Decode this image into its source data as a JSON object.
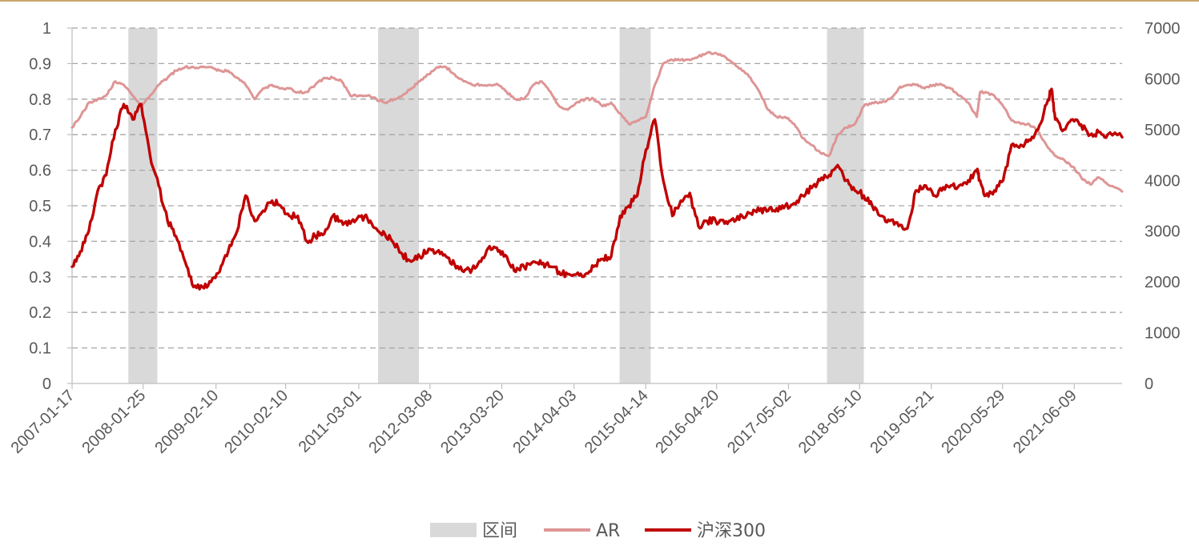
{
  "chart_data": {
    "type": "line",
    "title": "",
    "left_axis": {
      "ylim": [
        0,
        1
      ],
      "ticks": [
        "0",
        "0.1",
        "0.2",
        "0.3",
        "0.4",
        "0.5",
        "0.6",
        "0.7",
        "0.8",
        "0.9",
        "1"
      ]
    },
    "right_axis": {
      "ylim": [
        0,
        7000
      ],
      "ticks": [
        "0",
        "1000",
        "2000",
        "3000",
        "4000",
        "5000",
        "6000",
        "7000"
      ]
    },
    "x_range": [
      "2007-01-17",
      "2022-02-15"
    ],
    "x_tick_labels": [
      "2007-01-17",
      "2008-01-25",
      "2009-02-10",
      "2010-02-10",
      "2011-03-01",
      "2012-03-08",
      "2013-03-20",
      "2014-04-03",
      "2015-04-14",
      "2016-04-20",
      "2017-05-02",
      "2018-05-10",
      "2019-05-21",
      "2020-05-29",
      "2021-06-09"
    ],
    "grid": "horizontal dashed",
    "legend_position": "bottom",
    "legend": [
      {
        "label": "区间",
        "kind": "band",
        "color": "#d9d9d9"
      },
      {
        "label": "AR",
        "kind": "line",
        "color": "#de9595"
      },
      {
        "label": "沪深300",
        "kind": "line",
        "color": "#c00000"
      }
    ],
    "shaded_intervals": [
      [
        "2007-11-08",
        "2008-04-08"
      ],
      [
        "2011-06-10",
        "2012-01-10"
      ],
      [
        "2014-11-28",
        "2015-05-10"
      ],
      [
        "2017-11-20",
        "2018-06-01"
      ]
    ],
    "series": [
      {
        "name": "AR",
        "axis": "left",
        "color": "#de9595",
        "points": [
          [
            "2007-01-17",
            0.72
          ],
          [
            "2007-03-01",
            0.75
          ],
          [
            "2007-04-15",
            0.79
          ],
          [
            "2007-06-01",
            0.8
          ],
          [
            "2007-07-15",
            0.81
          ],
          [
            "2007-09-01",
            0.85
          ],
          [
            "2007-10-15",
            0.84
          ],
          [
            "2007-12-01",
            0.81
          ],
          [
            "2008-01-15",
            0.78
          ],
          [
            "2008-03-01",
            0.81
          ],
          [
            "2008-04-15",
            0.84
          ],
          [
            "2008-06-01",
            0.86
          ],
          [
            "2008-07-15",
            0.88
          ],
          [
            "2008-09-01",
            0.89
          ],
          [
            "2008-10-15",
            0.89
          ],
          [
            "2008-12-01",
            0.89
          ],
          [
            "2009-01-15",
            0.89
          ],
          [
            "2009-03-01",
            0.88
          ],
          [
            "2009-04-15",
            0.88
          ],
          [
            "2009-06-01",
            0.86
          ],
          [
            "2009-07-15",
            0.84
          ],
          [
            "2009-09-01",
            0.8
          ],
          [
            "2009-10-15",
            0.83
          ],
          [
            "2009-12-01",
            0.84
          ],
          [
            "2010-01-15",
            0.83
          ],
          [
            "2010-03-01",
            0.83
          ],
          [
            "2010-04-15",
            0.82
          ],
          [
            "2010-06-01",
            0.82
          ],
          [
            "2010-07-15",
            0.84
          ],
          [
            "2010-09-01",
            0.86
          ],
          [
            "2010-10-15",
            0.86
          ],
          [
            "2010-12-01",
            0.85
          ],
          [
            "2011-01-15",
            0.81
          ],
          [
            "2011-03-01",
            0.81
          ],
          [
            "2011-04-15",
            0.81
          ],
          [
            "2011-06-01",
            0.8
          ],
          [
            "2011-07-15",
            0.79
          ],
          [
            "2011-09-01",
            0.8
          ],
          [
            "2011-10-15",
            0.81
          ],
          [
            "2011-12-01",
            0.83
          ],
          [
            "2012-01-15",
            0.85
          ],
          [
            "2012-03-01",
            0.87
          ],
          [
            "2012-04-15",
            0.89
          ],
          [
            "2012-06-01",
            0.89
          ],
          [
            "2012-07-15",
            0.87
          ],
          [
            "2012-09-01",
            0.85
          ],
          [
            "2012-10-15",
            0.84
          ],
          [
            "2012-12-01",
            0.84
          ],
          [
            "2013-01-15",
            0.84
          ],
          [
            "2013-03-01",
            0.84
          ],
          [
            "2013-04-15",
            0.82
          ],
          [
            "2013-06-01",
            0.8
          ],
          [
            "2013-07-15",
            0.8
          ],
          [
            "2013-09-01",
            0.84
          ],
          [
            "2013-10-15",
            0.85
          ],
          [
            "2013-12-01",
            0.82
          ],
          [
            "2014-01-15",
            0.78
          ],
          [
            "2014-03-01",
            0.77
          ],
          [
            "2014-04-15",
            0.79
          ],
          [
            "2014-06-01",
            0.8
          ],
          [
            "2014-07-15",
            0.8
          ],
          [
            "2014-09-01",
            0.78
          ],
          [
            "2014-10-15",
            0.79
          ],
          [
            "2014-12-01",
            0.76
          ],
          [
            "2015-01-15",
            0.73
          ],
          [
            "2015-03-01",
            0.74
          ],
          [
            "2015-04-15",
            0.75
          ],
          [
            "2015-06-01",
            0.84
          ],
          [
            "2015-07-15",
            0.9
          ],
          [
            "2015-09-01",
            0.91
          ],
          [
            "2015-10-15",
            0.91
          ],
          [
            "2015-12-01",
            0.91
          ],
          [
            "2016-01-15",
            0.92
          ],
          [
            "2016-03-01",
            0.93
          ],
          [
            "2016-04-15",
            0.93
          ],
          [
            "2016-06-01",
            0.92
          ],
          [
            "2016-07-15",
            0.9
          ],
          [
            "2016-09-01",
            0.88
          ],
          [
            "2016-10-15",
            0.86
          ],
          [
            "2016-12-01",
            0.82
          ],
          [
            "2017-01-15",
            0.77
          ],
          [
            "2017-03-01",
            0.75
          ],
          [
            "2017-04-15",
            0.75
          ],
          [
            "2017-06-01",
            0.73
          ],
          [
            "2017-07-15",
            0.69
          ],
          [
            "2017-09-01",
            0.67
          ],
          [
            "2017-10-15",
            0.65
          ],
          [
            "2017-12-01",
            0.64
          ],
          [
            "2018-01-15",
            0.7
          ],
          [
            "2018-03-01",
            0.72
          ],
          [
            "2018-04-15",
            0.73
          ],
          [
            "2018-06-01",
            0.78
          ],
          [
            "2018-07-15",
            0.79
          ],
          [
            "2018-09-01",
            0.79
          ],
          [
            "2018-10-15",
            0.8
          ],
          [
            "2018-12-01",
            0.83
          ],
          [
            "2019-01-15",
            0.84
          ],
          [
            "2019-03-01",
            0.84
          ],
          [
            "2019-04-15",
            0.83
          ],
          [
            "2019-06-01",
            0.84
          ],
          [
            "2019-07-15",
            0.84
          ],
          [
            "2019-09-01",
            0.83
          ],
          [
            "2019-10-15",
            0.81
          ],
          [
            "2019-12-01",
            0.79
          ],
          [
            "2020-01-15",
            0.75
          ],
          [
            "2020-02-01",
            0.82
          ],
          [
            "2020-03-01",
            0.82
          ],
          [
            "2020-04-15",
            0.81
          ],
          [
            "2020-06-01",
            0.78
          ],
          [
            "2020-07-15",
            0.74
          ],
          [
            "2020-09-01",
            0.73
          ],
          [
            "2020-10-15",
            0.73
          ],
          [
            "2020-12-01",
            0.71
          ],
          [
            "2021-01-15",
            0.67
          ],
          [
            "2021-03-01",
            0.64
          ],
          [
            "2021-04-15",
            0.63
          ],
          [
            "2021-06-01",
            0.61
          ],
          [
            "2021-07-15",
            0.58
          ],
          [
            "2021-09-01",
            0.56
          ],
          [
            "2021-10-15",
            0.58
          ],
          [
            "2021-12-01",
            0.56
          ],
          [
            "2022-02-15",
            0.54
          ]
        ]
      },
      {
        "name": "沪深300",
        "axis": "right",
        "color": "#c00000",
        "points": [
          [
            "2007-01-17",
            2300
          ],
          [
            "2007-03-01",
            2600
          ],
          [
            "2007-04-15",
            3000
          ],
          [
            "2007-06-01",
            3800
          ],
          [
            "2007-07-15",
            4100
          ],
          [
            "2007-09-01",
            5000
          ],
          [
            "2007-10-15",
            5500
          ],
          [
            "2007-12-01",
            5200
          ],
          [
            "2008-01-15",
            5500
          ],
          [
            "2008-03-01",
            4500
          ],
          [
            "2008-04-15",
            3900
          ],
          [
            "2008-06-01",
            3200
          ],
          [
            "2008-07-15",
            2900
          ],
          [
            "2008-09-01",
            2400
          ],
          [
            "2008-10-15",
            1900
          ],
          [
            "2008-12-01",
            1900
          ],
          [
            "2009-01-15",
            2000
          ],
          [
            "2009-03-01",
            2200
          ],
          [
            "2009-04-15",
            2600
          ],
          [
            "2009-06-01",
            3000
          ],
          [
            "2009-07-15",
            3700
          ],
          [
            "2009-09-01",
            3200
          ],
          [
            "2009-10-15",
            3400
          ],
          [
            "2009-12-01",
            3600
          ],
          [
            "2010-01-15",
            3500
          ],
          [
            "2010-03-01",
            3300
          ],
          [
            "2010-04-15",
            3300
          ],
          [
            "2010-06-01",
            2800
          ],
          [
            "2010-07-15",
            2900
          ],
          [
            "2010-09-01",
            2950
          ],
          [
            "2010-10-15",
            3300
          ],
          [
            "2010-12-01",
            3200
          ],
          [
            "2011-01-15",
            3150
          ],
          [
            "2011-03-01",
            3300
          ],
          [
            "2011-04-15",
            3250
          ],
          [
            "2011-06-01",
            3050
          ],
          [
            "2011-07-15",
            2950
          ],
          [
            "2011-09-01",
            2750
          ],
          [
            "2011-10-15",
            2550
          ],
          [
            "2011-12-01",
            2400
          ],
          [
            "2012-01-15",
            2500
          ],
          [
            "2012-03-01",
            2650
          ],
          [
            "2012-04-15",
            2600
          ],
          [
            "2012-06-01",
            2500
          ],
          [
            "2012-07-15",
            2350
          ],
          [
            "2012-09-01",
            2200
          ],
          [
            "2012-10-15",
            2250
          ],
          [
            "2012-12-01",
            2400
          ],
          [
            "2013-01-15",
            2700
          ],
          [
            "2013-03-01",
            2600
          ],
          [
            "2013-04-15",
            2500
          ],
          [
            "2013-06-01",
            2200
          ],
          [
            "2013-07-15",
            2300
          ],
          [
            "2013-09-01",
            2400
          ],
          [
            "2013-10-15",
            2350
          ],
          [
            "2013-12-01",
            2300
          ],
          [
            "2014-01-15",
            2200
          ],
          [
            "2014-03-01",
            2150
          ],
          [
            "2014-04-15",
            2150
          ],
          [
            "2014-06-01",
            2150
          ],
          [
            "2014-07-15",
            2300
          ],
          [
            "2014-09-01",
            2450
          ],
          [
            "2014-10-15",
            2500
          ],
          [
            "2014-12-01",
            3300
          ],
          [
            "2015-01-15",
            3500
          ],
          [
            "2015-03-01",
            3700
          ],
          [
            "2015-04-15",
            4600
          ],
          [
            "2015-06-01",
            5200
          ],
          [
            "2015-07-15",
            4000
          ],
          [
            "2015-09-01",
            3300
          ],
          [
            "2015-10-15",
            3600
          ],
          [
            "2015-12-01",
            3750
          ],
          [
            "2016-01-15",
            3100
          ],
          [
            "2016-03-01",
            3200
          ],
          [
            "2016-04-15",
            3200
          ],
          [
            "2016-06-01",
            3150
          ],
          [
            "2016-07-15",
            3250
          ],
          [
            "2016-09-01",
            3300
          ],
          [
            "2016-10-15",
            3350
          ],
          [
            "2016-12-01",
            3400
          ],
          [
            "2017-01-15",
            3400
          ],
          [
            "2017-03-01",
            3450
          ],
          [
            "2017-04-15",
            3500
          ],
          [
            "2017-06-01",
            3550
          ],
          [
            "2017-07-15",
            3700
          ],
          [
            "2017-09-01",
            3850
          ],
          [
            "2017-10-15",
            4000
          ],
          [
            "2017-12-01",
            4100
          ],
          [
            "2018-01-15",
            4300
          ],
          [
            "2018-03-01",
            4000
          ],
          [
            "2018-04-15",
            3800
          ],
          [
            "2018-06-01",
            3700
          ],
          [
            "2018-07-15",
            3500
          ],
          [
            "2018-09-01",
            3300
          ],
          [
            "2018-10-15",
            3200
          ],
          [
            "2018-12-01",
            3100
          ],
          [
            "2019-01-15",
            3050
          ],
          [
            "2019-03-01",
            3800
          ],
          [
            "2019-04-15",
            3900
          ],
          [
            "2019-06-01",
            3700
          ],
          [
            "2019-07-15",
            3800
          ],
          [
            "2019-09-01",
            3900
          ],
          [
            "2019-10-15",
            3900
          ],
          [
            "2019-12-01",
            4000
          ],
          [
            "2020-01-15",
            4200
          ],
          [
            "2020-02-01",
            4000
          ],
          [
            "2020-03-01",
            3700
          ],
          [
            "2020-04-15",
            3800
          ],
          [
            "2020-06-01",
            4000
          ],
          [
            "2020-07-15",
            4700
          ],
          [
            "2020-09-01",
            4700
          ],
          [
            "2020-10-15",
            4800
          ],
          [
            "2020-12-01",
            5000
          ],
          [
            "2021-01-15",
            5500
          ],
          [
            "2021-02-10",
            5800
          ],
          [
            "2021-03-01",
            5200
          ],
          [
            "2021-04-15",
            5000
          ],
          [
            "2021-06-01",
            5200
          ],
          [
            "2021-07-15",
            5100
          ],
          [
            "2021-09-01",
            4900
          ],
          [
            "2021-10-15",
            4950
          ],
          [
            "2021-12-01",
            4900
          ],
          [
            "2022-02-15",
            4850
          ]
        ]
      }
    ]
  }
}
